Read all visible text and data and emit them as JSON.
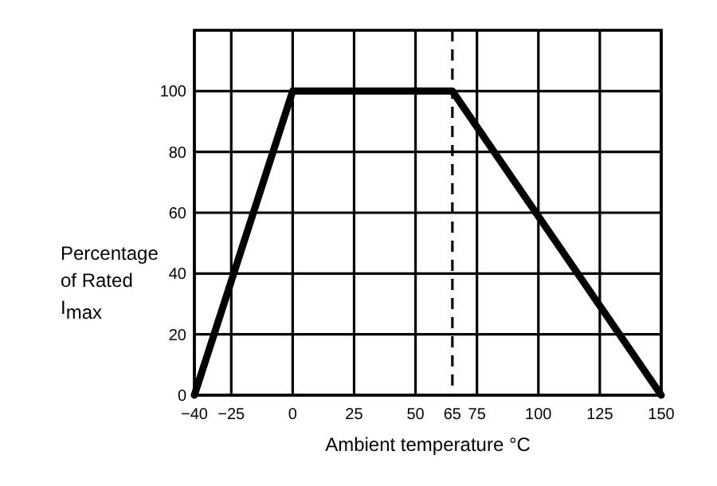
{
  "chart_data": {
    "type": "line",
    "xlabel": "Ambient temperature °C",
    "ylabel": "Percentage\nof Rated\nI$_{max}$",
    "x": [
      -40,
      0,
      65,
      150
    ],
    "series": [
      {
        "color": "#000000",
        "values": [
          0,
          100,
          100,
          0
        ]
      }
    ],
    "xlim": [
      -40,
      150
    ],
    "xticks": [
      -40,
      -25,
      0,
      25,
      50,
      65,
      75,
      100,
      125,
      150
    ],
    "ylim": [
      0,
      120
    ],
    "yticks": [
      0,
      20,
      40,
      60,
      80,
      100
    ],
    "grid": true,
    "marker": "none",
    "line_style": "solid",
    "ref_lines": [
      {
        "axis": "x",
        "value": 65,
        "line_style": "dashed"
      }
    ]
  }
}
